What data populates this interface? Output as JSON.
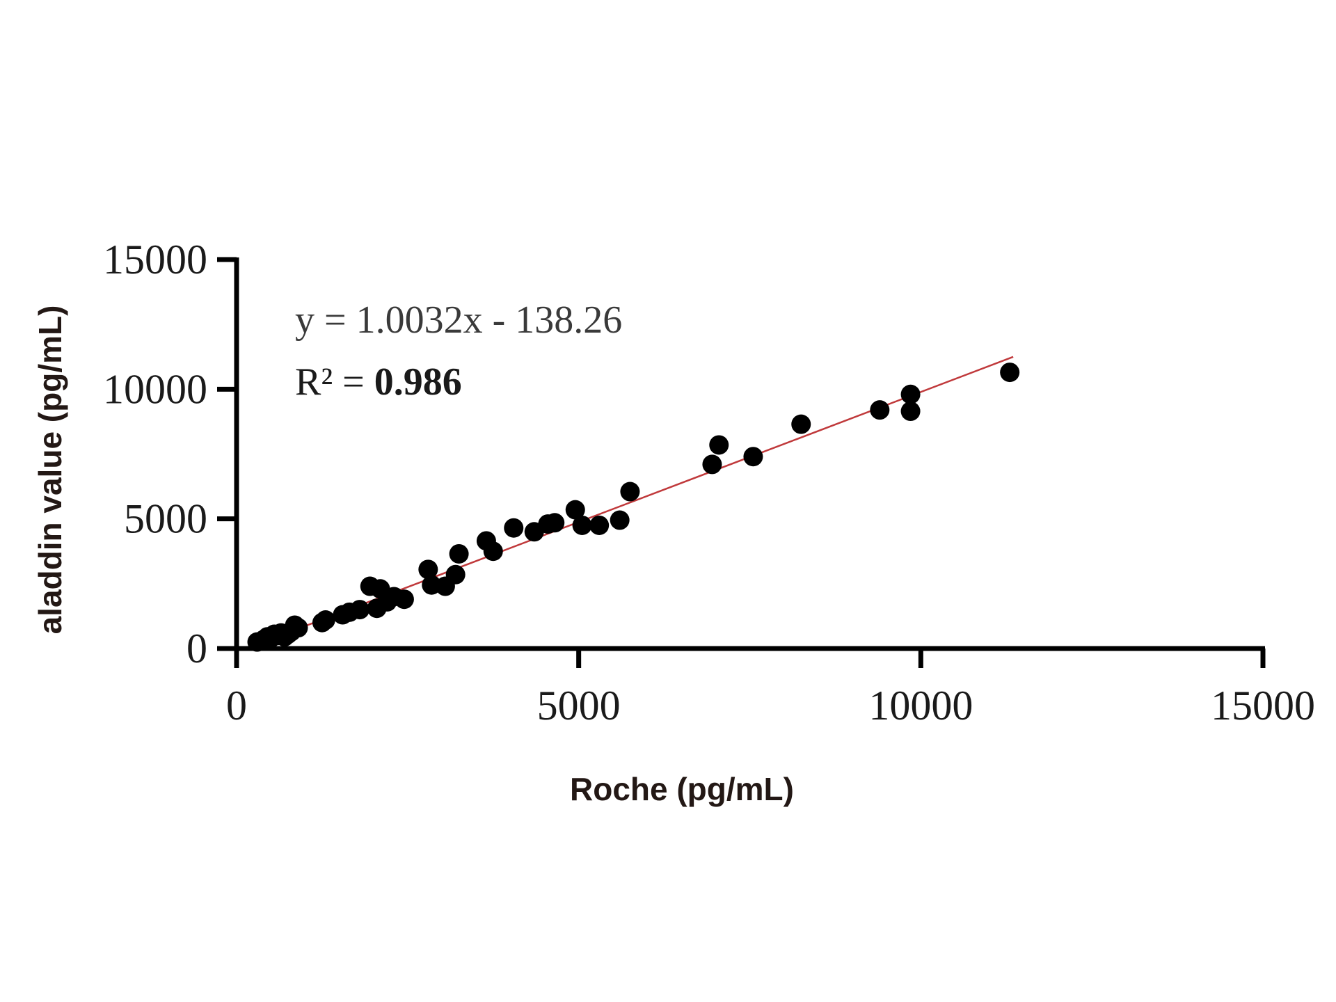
{
  "chart_data": {
    "type": "scatter",
    "title": "",
    "xlabel": "Roche (pg/mL)",
    "ylabel": "aladdin value (pg/mL)",
    "xlim": [
      0,
      15000
    ],
    "ylim": [
      0,
      15000
    ],
    "x_ticks": [
      "0",
      "5000",
      "10000",
      "15000"
    ],
    "y_ticks": [
      "0",
      "5000",
      "10000",
      "15000"
    ],
    "grid": false,
    "legend": "none",
    "annotations": {
      "equation": "y = 1.0032x - 138.26",
      "r2_prefix": "R² = ",
      "r2_value": "0.986"
    },
    "trendline": {
      "slope": 1.0032,
      "intercept": -138.26,
      "x_range": [
        300,
        11350
      ],
      "color": "#c0393b"
    },
    "point_color": "#000000",
    "series": [
      {
        "points": [
          [
            300,
            250
          ],
          [
            400,
            350
          ],
          [
            450,
            450
          ],
          [
            500,
            400
          ],
          [
            550,
            550
          ],
          [
            600,
            500
          ],
          [
            650,
            600
          ],
          [
            700,
            450
          ],
          [
            750,
            550
          ],
          [
            800,
            650
          ],
          [
            850,
            900
          ],
          [
            900,
            800
          ],
          [
            1250,
            1000
          ],
          [
            1300,
            1100
          ],
          [
            1550,
            1300
          ],
          [
            1650,
            1400
          ],
          [
            1800,
            1500
          ],
          [
            1950,
            2400
          ],
          [
            2100,
            2300
          ],
          [
            2050,
            1550
          ],
          [
            2200,
            1800
          ],
          [
            2300,
            2000
          ],
          [
            2450,
            1900
          ],
          [
            2800,
            3050
          ],
          [
            2850,
            2450
          ],
          [
            3050,
            2400
          ],
          [
            3200,
            2850
          ],
          [
            3250,
            3650
          ],
          [
            3650,
            4150
          ],
          [
            3750,
            3750
          ],
          [
            4050,
            4650
          ],
          [
            4350,
            4500
          ],
          [
            4550,
            4800
          ],
          [
            4650,
            4850
          ],
          [
            4950,
            5350
          ],
          [
            5050,
            4750
          ],
          [
            5300,
            4750
          ],
          [
            5600,
            4950
          ],
          [
            5750,
            6050
          ],
          [
            6950,
            7100
          ],
          [
            7050,
            7850
          ],
          [
            7550,
            7400
          ],
          [
            8250,
            8650
          ],
          [
            9400,
            9200
          ],
          [
            9850,
            9150
          ],
          [
            9850,
            9800
          ],
          [
            11300,
            10650
          ]
        ]
      }
    ]
  }
}
